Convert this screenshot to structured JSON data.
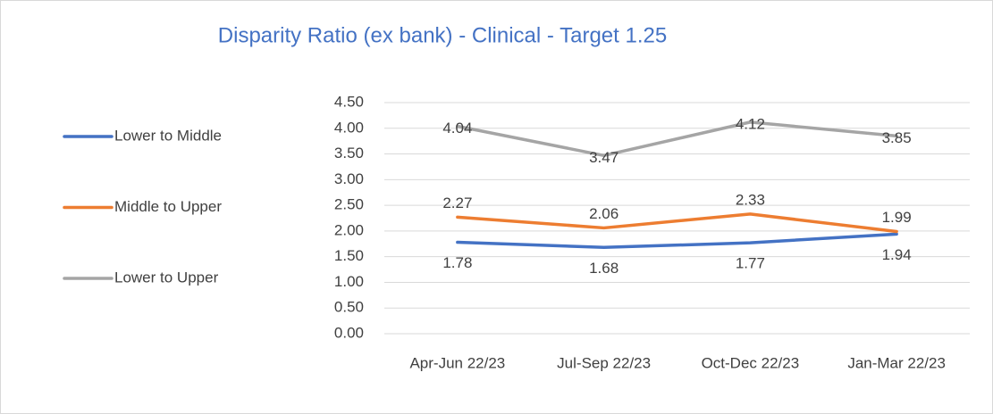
{
  "chart_data": {
    "type": "line",
    "title": "Disparity Ratio (ex bank) - Clinical - Target 1.25",
    "categories": [
      "Apr-Jun 22/23",
      "Jul-Sep 22/23",
      "Oct-Dec 22/23",
      "Jan-Mar 22/23"
    ],
    "series": [
      {
        "name": "Lower to Middle",
        "color": "#4472c4",
        "values": [
          1.78,
          1.68,
          1.77,
          1.94
        ]
      },
      {
        "name": "Middle to Upper",
        "color": "#ed7d31",
        "values": [
          2.27,
          2.06,
          2.33,
          1.99
        ]
      },
      {
        "name": "Lower to Upper",
        "color": "#a5a5a5",
        "values": [
          4.04,
          3.47,
          4.12,
          3.85
        ]
      }
    ],
    "ylim": [
      0,
      4.5
    ],
    "yticks": [
      {
        "value": 0,
        "label": "0.00"
      },
      {
        "value": 0.5,
        "label": "0.50"
      },
      {
        "value": 1,
        "label": "1.00"
      },
      {
        "value": 1.5,
        "label": "1.50"
      },
      {
        "value": 2,
        "label": "2.00"
      },
      {
        "value": 2.5,
        "label": "2.50"
      },
      {
        "value": 3,
        "label": "3.00"
      },
      {
        "value": 3.5,
        "label": "3.50"
      },
      {
        "value": 4,
        "label": "4.00"
      },
      {
        "value": 4.5,
        "label": "4.50"
      }
    ],
    "grid": true,
    "legend": "left"
  }
}
